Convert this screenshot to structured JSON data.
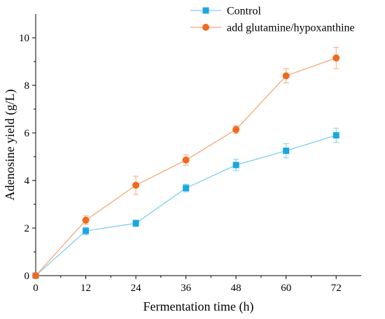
{
  "chart_data": {
    "type": "line",
    "title": "",
    "xlabel": "Fermentation time (h)",
    "ylabel": "Adenosine yield (g/L)",
    "xlim": [
      0,
      78
    ],
    "ylim": [
      0,
      11
    ],
    "xticks": [
      0,
      12,
      24,
      36,
      48,
      60,
      72
    ],
    "yticks": [
      0,
      2,
      4,
      6,
      8,
      10
    ],
    "x": [
      0,
      12,
      24,
      36,
      48,
      60,
      72
    ],
    "grid": false,
    "legend_position": "top",
    "series": [
      {
        "name": "Control",
        "marker": "square",
        "color": "#1aa6e0",
        "line_color": "#7fcff0",
        "values": [
          0,
          1.88,
          2.2,
          3.68,
          4.65,
          5.25,
          5.9
        ],
        "errors": [
          0,
          0.16,
          0.14,
          0.16,
          0.24,
          0.3,
          0.3
        ]
      },
      {
        "name": "add glutamine/hypoxanthine",
        "marker": "circle",
        "color": "#f06a1e",
        "line_color": "#f5a878",
        "values": [
          0,
          2.33,
          3.8,
          4.86,
          6.14,
          8.4,
          9.15
        ],
        "errors": [
          0,
          0.18,
          0.38,
          0.22,
          0.16,
          0.3,
          0.45
        ]
      }
    ]
  }
}
